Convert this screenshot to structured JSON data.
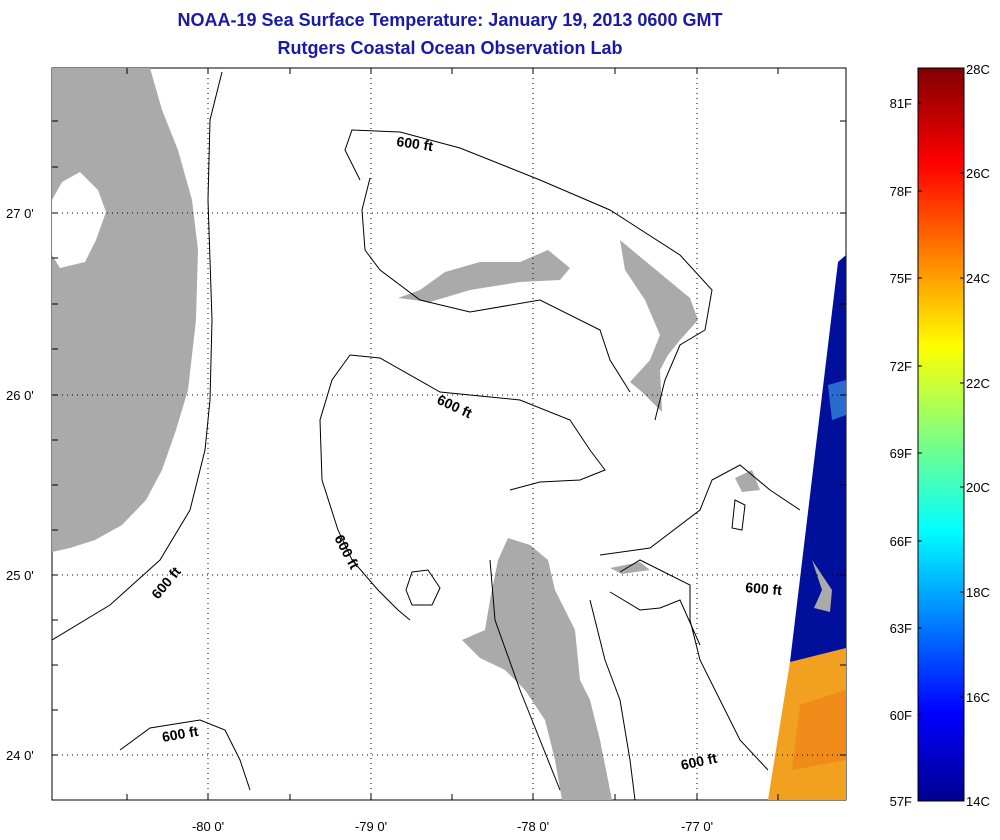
{
  "title": "NOAA-19 Sea Surface Temperature:  January 19, 2013 0600 GMT",
  "subtitle": "Rutgers Coastal Ocean Observation Lab",
  "map": {
    "lat_labels": [
      "27 0'",
      "26 0'",
      "25 0'",
      "24 0'"
    ],
    "lon_labels": [
      "-80 0'",
      "-79 0'",
      "-78 0'",
      "-77 0'"
    ],
    "contour_labels": [
      "600 ft",
      "600 ft",
      "600 ft",
      "600 ft",
      "600 ft",
      "600 ft"
    ],
    "colors": {
      "land": "#aaaaaa",
      "water": "#ffffff",
      "contour": "#000000"
    }
  },
  "colorbar": {
    "fahrenheit_labels": [
      "81F",
      "78F",
      "75F",
      "72F",
      "69F",
      "66F",
      "63F",
      "60F",
      "57F"
    ],
    "celsius_labels": [
      "28C",
      "26C",
      "24C",
      "22C",
      "20C",
      "18C",
      "16C",
      "14C"
    ],
    "range_c": [
      14,
      28
    ],
    "colormap": "jet"
  }
}
